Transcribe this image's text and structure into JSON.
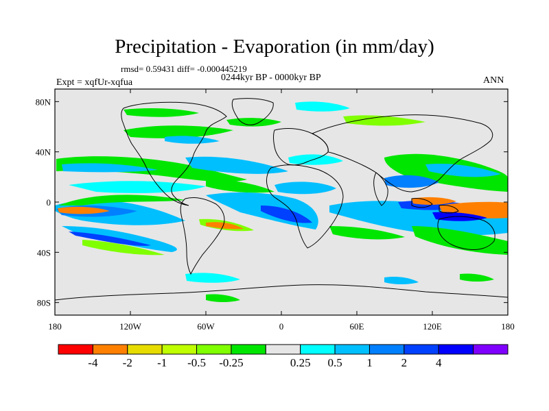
{
  "title": "Precipitation - Evaporation (in mm/day)",
  "stats": "rmsd= 0.59431 diff= -0.000445219",
  "period": "0244kyr BP - 0000kyr BP",
  "experiment": "Expt = xqfUr-xqfua",
  "season": "ANN",
  "lat_ticks": [
    "80N",
    "40N",
    "0",
    "40S",
    "80S"
  ],
  "lon_ticks": [
    "180",
    "120W",
    "60W",
    "0",
    "60E",
    "120E",
    "180"
  ],
  "colorbar": {
    "colors": [
      "#ff0000",
      "#ff8000",
      "#e6dc00",
      "#bfff00",
      "#80ff00",
      "#00e600",
      "#e6e6e6",
      "#00ffff",
      "#00bfff",
      "#0080ff",
      "#0040ff",
      "#0000ff",
      "#8000ff"
    ],
    "labels": [
      "-4",
      "-2",
      "-1",
      "-0.5",
      "-0.25",
      "0.25",
      "0.5",
      "1",
      "2",
      "4"
    ]
  },
  "colors": {
    "background": "#e6e6e6",
    "coast": "#000000"
  }
}
